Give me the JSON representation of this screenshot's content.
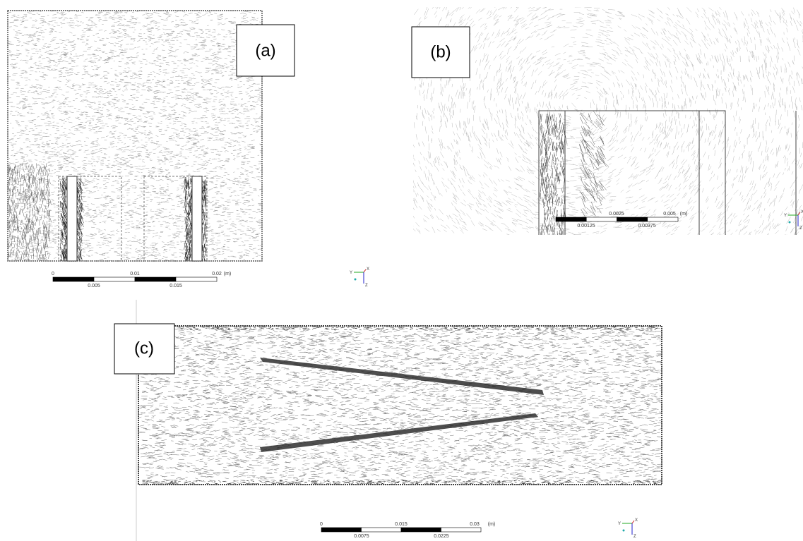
{
  "panels": [
    {
      "label": "(a)",
      "scale_bar": {
        "top": [
          "0",
          "0.01",
          "0.02",
          "(m)"
        ],
        "bottom": [
          "0.005",
          "0.015"
        ]
      },
      "triad": [
        "Y",
        "X",
        "Z"
      ]
    },
    {
      "label": "(b)",
      "scale_bar": {
        "top": [
          "0.0025",
          "0.005",
          "(m)"
        ],
        "bottom": [
          "0.00125",
          "0.00375"
        ]
      },
      "triad": [
        "Y",
        "X",
        "Z"
      ]
    },
    {
      "label": "(c)",
      "scale_bar": {
        "top": [
          "0",
          "0.015",
          "0.03",
          "(m)"
        ],
        "bottom": [
          "0.0075",
          "0.0225"
        ]
      },
      "triad": [
        "Y",
        "X",
        "Z"
      ]
    }
  ]
}
